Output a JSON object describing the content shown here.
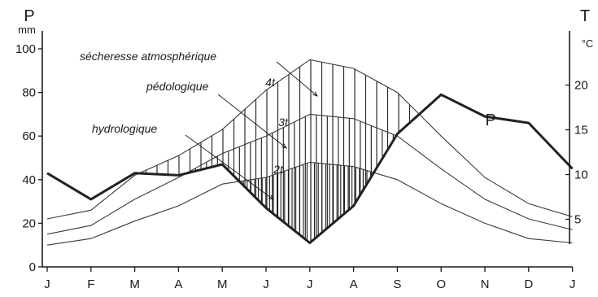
{
  "chart_data": {
    "type": "line",
    "title": "",
    "categories": [
      "J",
      "F",
      "M",
      "A",
      "M",
      "J",
      "J",
      "A",
      "S",
      "O",
      "N",
      "D",
      "J"
    ],
    "axes": {
      "left": {
        "label": "P",
        "unit": "mm",
        "ticks": [
          0,
          20,
          40,
          60,
          80,
          100
        ],
        "range": [
          0,
          100
        ]
      },
      "right": {
        "label": "T",
        "unit": "°C",
        "ticks": [
          5,
          10,
          15,
          20
        ],
        "range": [
          0,
          25
        ]
      }
    },
    "series": [
      {
        "id": "P",
        "name": "P",
        "axis": "left",
        "values": [
          43,
          31,
          43,
          42,
          47,
          27,
          11,
          28,
          61,
          79,
          69,
          66,
          45
        ]
      },
      {
        "id": "T4",
        "name": "4t",
        "axis": "left",
        "values": [
          22,
          26,
          42,
          51,
          63,
          81,
          95,
          91,
          80,
          60,
          41,
          29,
          23
        ]
      },
      {
        "id": "T3",
        "name": "3t",
        "axis": "left",
        "values": [
          15,
          19,
          31,
          41,
          52,
          60,
          70,
          68,
          60,
          45,
          31,
          22,
          17
        ]
      },
      {
        "id": "T2",
        "name": "2t",
        "axis": "left",
        "values": [
          10,
          13,
          21,
          28,
          38,
          41,
          48,
          46,
          40,
          29,
          20,
          13,
          11
        ]
      }
    ],
    "annotations": [
      {
        "id": "atmo",
        "text": "sécheresse  atmosphérique"
      },
      {
        "id": "pedo",
        "text": "pédologique"
      },
      {
        "id": "hydro",
        "text": "hydrologique"
      }
    ],
    "hatching": "vertical lines in zones where P < 4t, P < 3t, P < 2t",
    "grid": false,
    "legend": "none"
  }
}
